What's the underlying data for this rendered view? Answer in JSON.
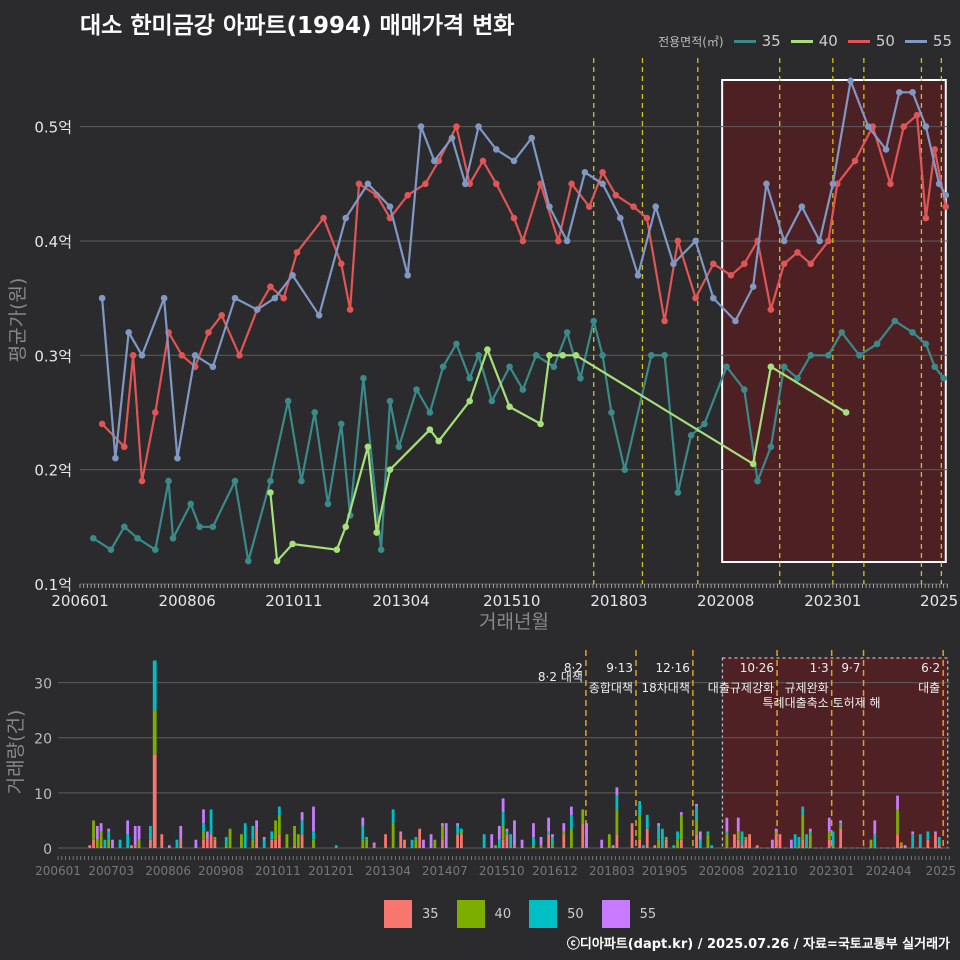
{
  "title": "대소 한미금강 아파트(1994) 매매가격 변화",
  "credit": "ⓒ디아파트(dapt.kr) / 2025.07.26 / 자료=국토교통부 실거래가",
  "legend": {
    "title": "전용면적(㎡)",
    "items": [
      {
        "label": "35",
        "line_color": "#3a8a8a",
        "bar_color": "#f8766d"
      },
      {
        "label": "40",
        "line_color": "#a6e07a",
        "bar_color": "#7cae00"
      },
      {
        "label": "50",
        "line_color": "#e05555",
        "bar_color": "#00bfc4"
      },
      {
        "label": "55",
        "line_color": "#7f98c4",
        "bar_color": "#c77cff"
      }
    ]
  },
  "chart_data": [
    {
      "type": "line",
      "xlabel": "거래년월",
      "ylabel": "평균가(원)",
      "x_ticks": [
        "200601",
        "200806",
        "201011",
        "201304",
        "201510",
        "201803",
        "202008",
        "202301",
        "2025"
      ],
      "y_ticks": [
        "0.1억",
        "0.2억",
        "0.3억",
        "0.4억",
        "0.5억"
      ],
      "ylim": [
        0.1,
        0.56
      ],
      "xlim": [
        2006.0,
        2025.6
      ],
      "highlight_range": [
        2020.5,
        2025.55
      ],
      "policy_lines": [
        2017.6,
        2018.7,
        2019.95,
        2021.8,
        2023.0,
        2023.7,
        2025.0,
        2025.45
      ],
      "series": [
        {
          "name": "35",
          "color": "#3a8a8a",
          "points": [
            [
              2006.3,
              0.14
            ],
            [
              2006.7,
              0.13
            ],
            [
              2007.0,
              0.15
            ],
            [
              2007.3,
              0.14
            ],
            [
              2007.7,
              0.13
            ],
            [
              2008.0,
              0.19
            ],
            [
              2008.1,
              0.14
            ],
            [
              2008.5,
              0.17
            ],
            [
              2008.7,
              0.15
            ],
            [
              2009.0,
              0.15
            ],
            [
              2009.5,
              0.19
            ],
            [
              2009.8,
              0.12
            ],
            [
              2010.3,
              0.19
            ],
            [
              2010.7,
              0.26
            ],
            [
              2011.0,
              0.19
            ],
            [
              2011.3,
              0.25
            ],
            [
              2011.6,
              0.17
            ],
            [
              2011.9,
              0.24
            ],
            [
              2012.1,
              0.16
            ],
            [
              2012.4,
              0.28
            ],
            [
              2012.8,
              0.13
            ],
            [
              2013.0,
              0.26
            ],
            [
              2013.2,
              0.22
            ],
            [
              2013.6,
              0.27
            ],
            [
              2013.9,
              0.25
            ],
            [
              2014.2,
              0.29
            ],
            [
              2014.5,
              0.31
            ],
            [
              2014.8,
              0.28
            ],
            [
              2015.0,
              0.3
            ],
            [
              2015.3,
              0.26
            ],
            [
              2015.7,
              0.29
            ],
            [
              2016.0,
              0.27
            ],
            [
              2016.3,
              0.3
            ],
            [
              2016.7,
              0.29
            ],
            [
              2017.0,
              0.32
            ],
            [
              2017.3,
              0.28
            ],
            [
              2017.6,
              0.33
            ],
            [
              2017.8,
              0.3
            ],
            [
              2018.0,
              0.25
            ],
            [
              2018.3,
              0.2
            ],
            [
              2018.9,
              0.3
            ],
            [
              2019.2,
              0.3
            ],
            [
              2019.5,
              0.18
            ],
            [
              2019.8,
              0.23
            ],
            [
              2020.1,
              0.24
            ],
            [
              2020.6,
              0.29
            ],
            [
              2021.0,
              0.27
            ],
            [
              2021.3,
              0.19
            ],
            [
              2021.6,
              0.22
            ],
            [
              2021.9,
              0.29
            ],
            [
              2022.2,
              0.28
            ],
            [
              2022.5,
              0.3
            ],
            [
              2022.9,
              0.3
            ],
            [
              2023.2,
              0.32
            ],
            [
              2023.6,
              0.3
            ],
            [
              2024.0,
              0.31
            ],
            [
              2024.4,
              0.33
            ],
            [
              2024.8,
              0.32
            ],
            [
              2025.1,
              0.31
            ],
            [
              2025.3,
              0.29
            ],
            [
              2025.5,
              0.28
            ]
          ]
        },
        {
          "name": "40",
          "color": "#a6e07a",
          "points": [
            [
              2010.3,
              0.18
            ],
            [
              2010.45,
              0.12
            ],
            [
              2010.8,
              0.135
            ],
            [
              2011.8,
              0.13
            ],
            [
              2012.0,
              0.15
            ],
            [
              2012.5,
              0.22
            ],
            [
              2012.7,
              0.145
            ],
            [
              2013.0,
              0.2
            ],
            [
              2013.9,
              0.235
            ],
            [
              2014.1,
              0.225
            ],
            [
              2014.8,
              0.26
            ],
            [
              2015.2,
              0.305
            ],
            [
              2015.7,
              0.255
            ],
            [
              2016.4,
              0.24
            ],
            [
              2016.6,
              0.3
            ],
            [
              2016.9,
              0.3
            ],
            [
              2017.2,
              0.3
            ],
            [
              2021.2,
              0.205
            ],
            [
              2021.6,
              0.29
            ],
            [
              2023.3,
              0.25
            ]
          ]
        },
        {
          "name": "50",
          "color": "#e05555",
          "points": [
            [
              2006.5,
              0.24
            ],
            [
              2007.0,
              0.22
            ],
            [
              2007.2,
              0.3
            ],
            [
              2007.4,
              0.19
            ],
            [
              2007.7,
              0.25
            ],
            [
              2008.0,
              0.32
            ],
            [
              2008.3,
              0.3
            ],
            [
              2008.6,
              0.29
            ],
            [
              2008.9,
              0.32
            ],
            [
              2009.2,
              0.335
            ],
            [
              2009.6,
              0.3
            ],
            [
              2010.0,
              0.34
            ],
            [
              2010.3,
              0.36
            ],
            [
              2010.6,
              0.35
            ],
            [
              2010.9,
              0.39
            ],
            [
              2011.5,
              0.42
            ],
            [
              2011.9,
              0.38
            ],
            [
              2012.1,
              0.34
            ],
            [
              2012.3,
              0.45
            ],
            [
              2012.7,
              0.44
            ],
            [
              2013.0,
              0.42
            ],
            [
              2013.4,
              0.44
            ],
            [
              2013.8,
              0.45
            ],
            [
              2014.1,
              0.47
            ],
            [
              2014.5,
              0.5
            ],
            [
              2014.8,
              0.45
            ],
            [
              2015.1,
              0.47
            ],
            [
              2015.4,
              0.45
            ],
            [
              2015.8,
              0.42
            ],
            [
              2016.0,
              0.4
            ],
            [
              2016.4,
              0.45
            ],
            [
              2016.8,
              0.4
            ],
            [
              2017.1,
              0.45
            ],
            [
              2017.5,
              0.43
            ],
            [
              2017.8,
              0.46
            ],
            [
              2018.1,
              0.44
            ],
            [
              2018.5,
              0.43
            ],
            [
              2018.8,
              0.42
            ],
            [
              2019.2,
              0.33
            ],
            [
              2019.5,
              0.4
            ],
            [
              2019.9,
              0.35
            ],
            [
              2020.3,
              0.38
            ],
            [
              2020.7,
              0.37
            ],
            [
              2021.0,
              0.38
            ],
            [
              2021.3,
              0.4
            ],
            [
              2021.6,
              0.34
            ],
            [
              2021.9,
              0.38
            ],
            [
              2022.2,
              0.39
            ],
            [
              2022.5,
              0.38
            ],
            [
              2022.9,
              0.4
            ],
            [
              2023.1,
              0.45
            ],
            [
              2023.5,
              0.47
            ],
            [
              2023.9,
              0.5
            ],
            [
              2024.3,
              0.45
            ],
            [
              2024.6,
              0.5
            ],
            [
              2024.9,
              0.51
            ],
            [
              2025.1,
              0.42
            ],
            [
              2025.3,
              0.48
            ],
            [
              2025.55,
              0.43
            ]
          ]
        },
        {
          "name": "55",
          "color": "#7f98c4",
          "points": [
            [
              2006.5,
              0.35
            ],
            [
              2006.8,
              0.21
            ],
            [
              2007.1,
              0.32
            ],
            [
              2007.4,
              0.3
            ],
            [
              2007.9,
              0.35
            ],
            [
              2008.2,
              0.21
            ],
            [
              2008.6,
              0.3
            ],
            [
              2009.0,
              0.29
            ],
            [
              2009.5,
              0.35
            ],
            [
              2010.0,
              0.34
            ],
            [
              2010.4,
              0.35
            ],
            [
              2010.8,
              0.37
            ],
            [
              2011.4,
              0.335
            ],
            [
              2012.0,
              0.42
            ],
            [
              2012.5,
              0.45
            ],
            [
              2013.0,
              0.43
            ],
            [
              2013.4,
              0.37
            ],
            [
              2013.7,
              0.5
            ],
            [
              2014.0,
              0.47
            ],
            [
              2014.4,
              0.49
            ],
            [
              2014.7,
              0.45
            ],
            [
              2015.0,
              0.5
            ],
            [
              2015.4,
              0.48
            ],
            [
              2015.8,
              0.47
            ],
            [
              2016.2,
              0.49
            ],
            [
              2016.6,
              0.43
            ],
            [
              2017.0,
              0.4
            ],
            [
              2017.4,
              0.46
            ],
            [
              2017.8,
              0.45
            ],
            [
              2018.2,
              0.42
            ],
            [
              2018.6,
              0.37
            ],
            [
              2019.0,
              0.43
            ],
            [
              2019.4,
              0.38
            ],
            [
              2019.9,
              0.4
            ],
            [
              2020.3,
              0.35
            ],
            [
              2020.8,
              0.33
            ],
            [
              2021.2,
              0.36
            ],
            [
              2021.5,
              0.45
            ],
            [
              2021.9,
              0.4
            ],
            [
              2022.3,
              0.43
            ],
            [
              2022.7,
              0.4
            ],
            [
              2023.0,
              0.45
            ],
            [
              2023.4,
              0.54
            ],
            [
              2023.8,
              0.5
            ],
            [
              2024.2,
              0.48
            ],
            [
              2024.5,
              0.53
            ],
            [
              2024.8,
              0.53
            ],
            [
              2025.1,
              0.5
            ],
            [
              2025.4,
              0.45
            ],
            [
              2025.55,
              0.44
            ]
          ]
        }
      ]
    },
    {
      "type": "bar",
      "ylabel": "거래량(건)",
      "y_ticks": [
        "0",
        "10",
        "20",
        "30"
      ],
      "ylim": [
        0,
        35
      ],
      "x_ticks": [
        "200601",
        "200703",
        "200806",
        "200908",
        "201011",
        "201201",
        "201304",
        "201407",
        "201510",
        "201612",
        "201803",
        "201905",
        "202008",
        "202110",
        "202301",
        "202404",
        "2025"
      ],
      "xlim": [
        2006.0,
        2025.6
      ],
      "highlight_range": [
        2020.6,
        2025.55
      ],
      "policies": [
        {
          "x": 2017.6,
          "date": "8·2",
          "label": "8·2 대책"
        },
        {
          "x": 2018.7,
          "date": "9·13",
          "label": "종합대책"
        },
        {
          "x": 2019.95,
          "date": "12·16",
          "label": "18차대책"
        },
        {
          "x": 2021.8,
          "date": "10·26",
          "label": "대출규제강화"
        },
        {
          "x": 2023.0,
          "date": "1·3",
          "label": "규제완화"
        },
        {
          "x": 2023.7,
          "date": "9·7",
          "label": "특례대출축소 토허제 해"
        },
        {
          "x": 2025.45,
          "date": "6·2",
          "label": "대출"
        }
      ],
      "spike": {
        "x": 2008.1,
        "values": [
          17,
          8,
          9,
          0
        ]
      }
    }
  ]
}
